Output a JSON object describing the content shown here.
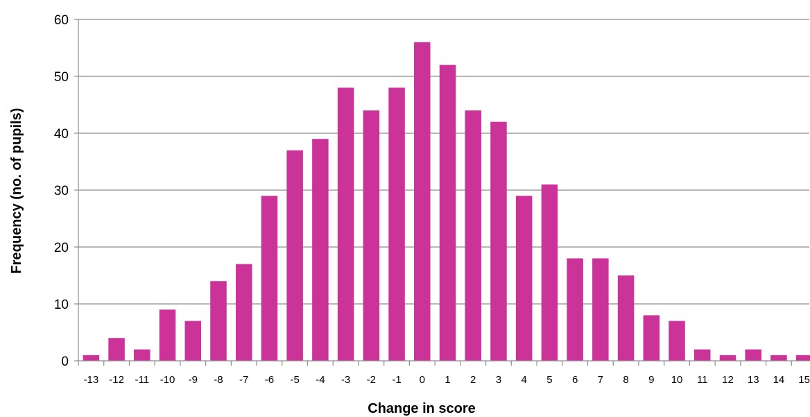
{
  "chart_data": {
    "type": "bar",
    "title": "",
    "xlabel": "Change in score",
    "ylabel": "Frequency (no. of pupils)",
    "ylim": [
      0,
      60
    ],
    "yticks": [
      0,
      10,
      20,
      30,
      40,
      50,
      60
    ],
    "grid": true,
    "legend": "none",
    "bar_color": "#CC3399",
    "grid_color": "#8C8C8C",
    "categories": [
      "-13",
      "-12",
      "-11",
      "-10",
      "-9",
      "-8",
      "-7",
      "-6",
      "-5",
      "-4",
      "-3",
      "-2",
      "-1",
      "0",
      "1",
      "2",
      "3",
      "4",
      "5",
      "6",
      "7",
      "8",
      "9",
      "10",
      "11",
      "12",
      "13",
      "14",
      "15"
    ],
    "values": [
      1,
      4,
      2,
      9,
      7,
      14,
      17,
      29,
      37,
      39,
      48,
      44,
      48,
      56,
      52,
      44,
      42,
      29,
      31,
      18,
      18,
      15,
      8,
      7,
      2,
      1,
      2,
      1,
      1
    ]
  }
}
